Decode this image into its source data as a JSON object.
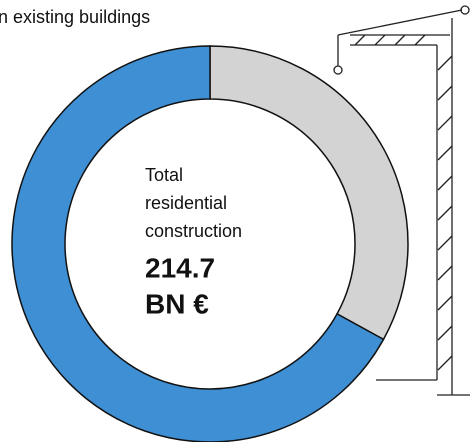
{
  "chart_data": {
    "type": "donut",
    "label": "n existing buildings",
    "values": [
      33,
      67
    ],
    "colors": [
      "#d3d3d3",
      "#3f8fd4"
    ],
    "center_text": [
      "Total",
      "residential",
      "construction"
    ],
    "total": 214.7,
    "unit": "BN €"
  }
}
